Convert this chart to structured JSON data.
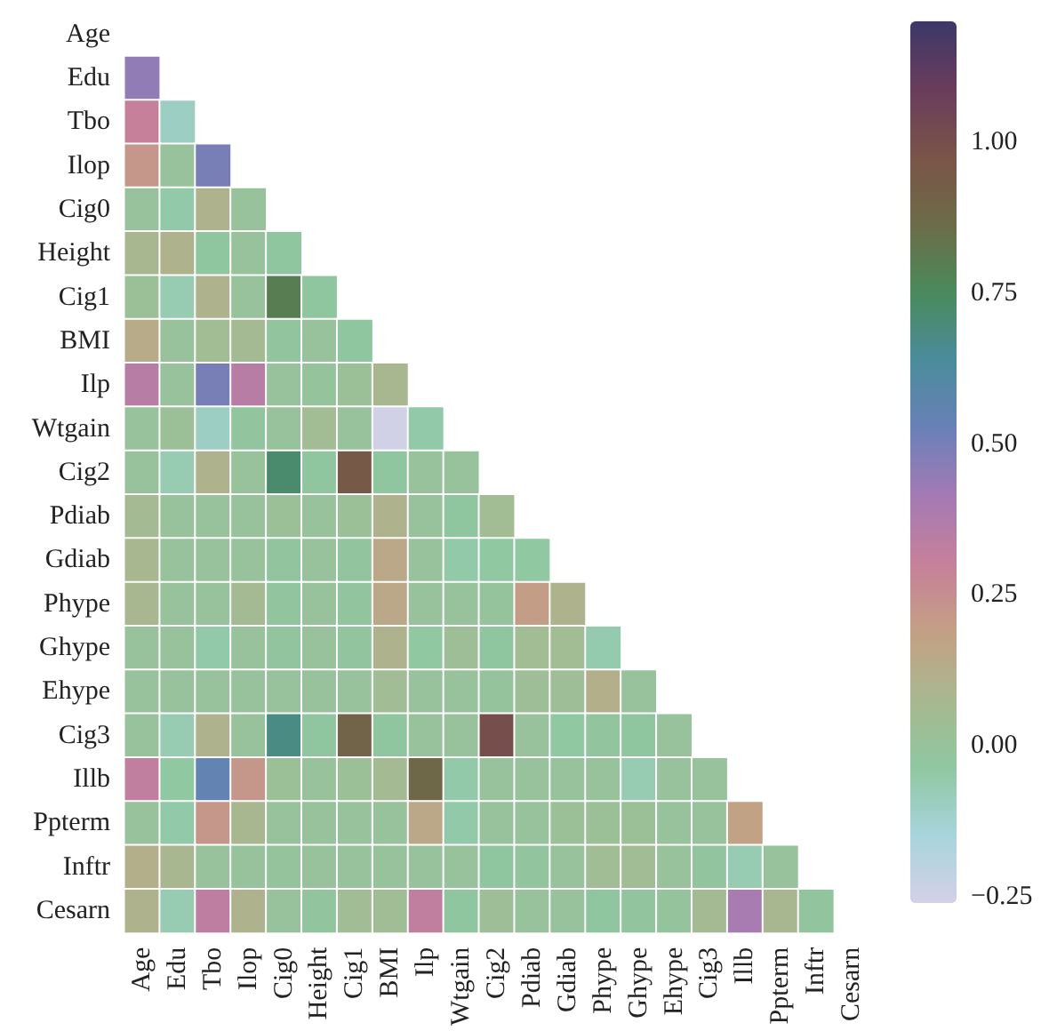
{
  "chart_data": {
    "type": "heatmap",
    "categories": [
      "Age",
      "Edu",
      "Tbo",
      "Ilop",
      "Cig0",
      "Height",
      "Cig1",
      "BMI",
      "Ilp",
      "Wtgain",
      "Cig2",
      "Pdiab",
      "Gdiab",
      "Phype",
      "Ghype",
      "Ehype",
      "Cig3",
      "Illb",
      "Ppterm",
      "Inftr",
      "Cesarn"
    ],
    "y_categories": [
      "Age",
      "Edu",
      "Tbo",
      "Ilop",
      "Cig0",
      "Height",
      "Cig1",
      "BMI",
      "Ilp",
      "Wtgain",
      "Cig2",
      "Pdiab",
      "Gdiab",
      "Phype",
      "Ghype",
      "Ehype",
      "Cig3",
      "Illb",
      "Ppterm",
      "Inftr",
      "Cesarn"
    ],
    "cells": [
      [
        null,
        null,
        null,
        null,
        null,
        null,
        null,
        null,
        null,
        null,
        null,
        null,
        null,
        null,
        null,
        null,
        null,
        null,
        null,
        null,
        null
      ],
      [
        0.45,
        null,
        null,
        null,
        null,
        null,
        null,
        null,
        null,
        null,
        null,
        null,
        null,
        null,
        null,
        null,
        null,
        null,
        null,
        null,
        null
      ],
      [
        0.3,
        -0.1,
        null,
        null,
        null,
        null,
        null,
        null,
        null,
        null,
        null,
        null,
        null,
        null,
        null,
        null,
        null,
        null,
        null,
        null,
        null
      ],
      [
        0.22,
        0.0,
        0.5,
        null,
        null,
        null,
        null,
        null,
        null,
        null,
        null,
        null,
        null,
        null,
        null,
        null,
        null,
        null,
        null,
        null,
        null
      ],
      [
        0.0,
        -0.05,
        0.1,
        0.0,
        null,
        null,
        null,
        null,
        null,
        null,
        null,
        null,
        null,
        null,
        null,
        null,
        null,
        null,
        null,
        null,
        null
      ],
      [
        0.08,
        0.1,
        -0.03,
        0.0,
        -0.03,
        null,
        null,
        null,
        null,
        null,
        null,
        null,
        null,
        null,
        null,
        null,
        null,
        null,
        null,
        null,
        null
      ],
      [
        0.02,
        -0.07,
        0.1,
        0.0,
        0.8,
        -0.03,
        null,
        null,
        null,
        null,
        null,
        null,
        null,
        null,
        null,
        null,
        null,
        null,
        null,
        null,
        null
      ],
      [
        0.14,
        0.0,
        0.05,
        0.06,
        -0.02,
        0.0,
        -0.03,
        null,
        null,
        null,
        null,
        null,
        null,
        null,
        null,
        null,
        null,
        null,
        null,
        null,
        null
      ],
      [
        0.35,
        0.0,
        0.5,
        0.35,
        0.0,
        -0.01,
        0.02,
        0.08,
        null,
        null,
        null,
        null,
        null,
        null,
        null,
        null,
        null,
        null,
        null,
        null,
        null
      ],
      [
        0.0,
        0.02,
        -0.1,
        -0.02,
        0.0,
        0.05,
        0.0,
        -0.25,
        -0.05,
        null,
        null,
        null,
        null,
        null,
        null,
        null,
        null,
        null,
        null,
        null,
        null
      ],
      [
        0.0,
        -0.07,
        0.1,
        0.0,
        0.72,
        -0.03,
        0.95,
        -0.03,
        0.0,
        0.0,
        null,
        null,
        null,
        null,
        null,
        null,
        null,
        null,
        null,
        null,
        null
      ],
      [
        0.06,
        0.0,
        0.0,
        0.0,
        0.02,
        0.0,
        0.02,
        0.1,
        0.0,
        -0.03,
        0.05,
        null,
        null,
        null,
        null,
        null,
        null,
        null,
        null,
        null,
        null
      ],
      [
        0.08,
        0.0,
        0.0,
        0.0,
        -0.02,
        0.0,
        -0.02,
        0.15,
        0.0,
        -0.05,
        -0.04,
        -0.04,
        null,
        null,
        null,
        null,
        null,
        null,
        null,
        null,
        null
      ],
      [
        0.08,
        0.0,
        0.0,
        0.06,
        -0.02,
        0.0,
        -0.02,
        0.15,
        0.0,
        0.0,
        -0.01,
        0.2,
        0.1,
        null,
        null,
        null,
        null,
        null,
        null,
        null,
        null
      ],
      [
        0.0,
        0.0,
        -0.05,
        0.0,
        -0.02,
        0.0,
        -0.02,
        0.1,
        -0.04,
        0.03,
        -0.03,
        0.05,
        0.05,
        -0.06,
        null,
        null,
        null,
        null,
        null,
        null,
        null
      ],
      [
        0.0,
        0.0,
        0.0,
        0.0,
        0.0,
        0.0,
        0.0,
        0.04,
        0.0,
        0.0,
        -0.01,
        0.03,
        0.03,
        0.12,
        0.0,
        null,
        null,
        null,
        null,
        null,
        null
      ],
      [
        0.0,
        -0.07,
        0.1,
        0.0,
        0.68,
        -0.03,
        0.9,
        -0.03,
        0.0,
        0.0,
        1.0,
        0.0,
        -0.04,
        -0.02,
        -0.03,
        0.0,
        null,
        null,
        null,
        null,
        null
      ],
      [
        0.32,
        -0.04,
        0.55,
        0.22,
        0.02,
        0.0,
        0.02,
        0.06,
        0.88,
        -0.05,
        0.0,
        0.0,
        0.0,
        0.0,
        -0.07,
        0.0,
        0.0,
        null,
        null,
        null,
        null
      ],
      [
        0.0,
        -0.05,
        0.22,
        0.08,
        0.0,
        0.0,
        0.0,
        0.0,
        0.15,
        -0.05,
        0.0,
        0.0,
        0.02,
        0.02,
        0.02,
        0.0,
        0.0,
        0.18,
        null,
        null,
        null
      ],
      [
        0.12,
        0.08,
        0.0,
        0.0,
        -0.01,
        0.0,
        0.0,
        0.0,
        0.0,
        0.0,
        -0.03,
        -0.02,
        0.0,
        0.04,
        0.04,
        0.0,
        -0.02,
        -0.07,
        0.0,
        null,
        null
      ],
      [
        0.1,
        -0.07,
        0.33,
        0.1,
        0.0,
        -0.02,
        0.04,
        0.04,
        0.32,
        -0.03,
        0.03,
        0.0,
        0.0,
        -0.03,
        -0.02,
        -0.01,
        0.06,
        0.4,
        0.08,
        -0.02,
        null
      ]
    ],
    "clim": [
      -0.26,
      1.2
    ],
    "cticks": [
      {
        "value": -0.25,
        "label": "−0.25"
      },
      {
        "value": 0,
        "label": "0.00"
      },
      {
        "value": 0.25,
        "label": "0.25"
      },
      {
        "value": 0.5,
        "label": "0.50"
      },
      {
        "value": 0.75,
        "label": "0.75"
      },
      {
        "value": 1.0,
        "label": "1.00"
      }
    ]
  }
}
